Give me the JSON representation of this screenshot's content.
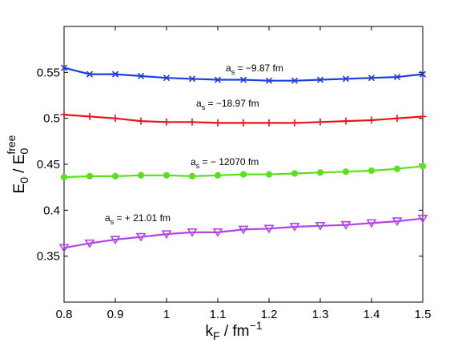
{
  "chart_data": {
    "type": "line",
    "xlim": [
      0.8,
      1.5
    ],
    "ylim": [
      0.3,
      0.6
    ],
    "x_ticks": [
      "0.8",
      "0.9",
      "1",
      "1.1",
      "1.2",
      "1.3",
      "1.4",
      "1.5"
    ],
    "y_ticks": [
      "0.35",
      "0.4",
      "0.45",
      "0.5",
      "0.55"
    ],
    "x_tick_values": [
      0.8,
      0.9,
      1.0,
      1.1,
      1.2,
      1.3,
      1.4,
      1.5
    ],
    "y_tick_values": [
      0.35,
      0.4,
      0.45,
      0.5,
      0.55
    ],
    "xlabel": {
      "main": "k",
      "sub": "F",
      "rest": " / fm",
      "sup": "−1"
    },
    "ylabel": {
      "main": "E",
      "sub": "0",
      "mid": " / E",
      "sub2": "0",
      "sup": "free"
    },
    "grid": false,
    "x": [
      0.8,
      0.85,
      0.9,
      0.95,
      1.0,
      1.05,
      1.1,
      1.15,
      1.2,
      1.25,
      1.3,
      1.35,
      1.4,
      1.45,
      1.5
    ],
    "series": [
      {
        "annotation": {
          "prefix": "a",
          "sub": "s",
          "text": " = −9.87 fm"
        },
        "color": "#1f3fdc",
        "marker": "x",
        "values": [
          0.555,
          0.548,
          0.548,
          0.546,
          0.544,
          0.543,
          0.542,
          0.542,
          0.541,
          0.541,
          0.542,
          0.543,
          0.544,
          0.545,
          0.548
        ]
      },
      {
        "annotation": {
          "prefix": "a",
          "sub": "s",
          "text": " = −18.97 fm"
        },
        "color": "#e8141c",
        "marker": "plus",
        "values": [
          0.504,
          0.502,
          0.5,
          0.497,
          0.496,
          0.496,
          0.495,
          0.495,
          0.495,
          0.495,
          0.496,
          0.497,
          0.498,
          0.5,
          0.502
        ]
      },
      {
        "annotation": {
          "prefix": "a",
          "sub": "s",
          "text": " = − 12070 fm"
        },
        "color": "#5be01c",
        "marker": "circle",
        "values": [
          0.436,
          0.437,
          0.437,
          0.438,
          0.438,
          0.437,
          0.438,
          0.439,
          0.439,
          0.44,
          0.441,
          0.442,
          0.443,
          0.445,
          0.448
        ]
      },
      {
        "annotation": {
          "prefix": "a",
          "sub": "s",
          "text": " = + 21.01 fm"
        },
        "color": "#b044e6",
        "marker": "triangle-down",
        "values": [
          0.359,
          0.364,
          0.368,
          0.371,
          0.374,
          0.376,
          0.376,
          0.379,
          0.38,
          0.382,
          0.383,
          0.384,
          0.386,
          0.388,
          0.391
        ]
      }
    ]
  }
}
